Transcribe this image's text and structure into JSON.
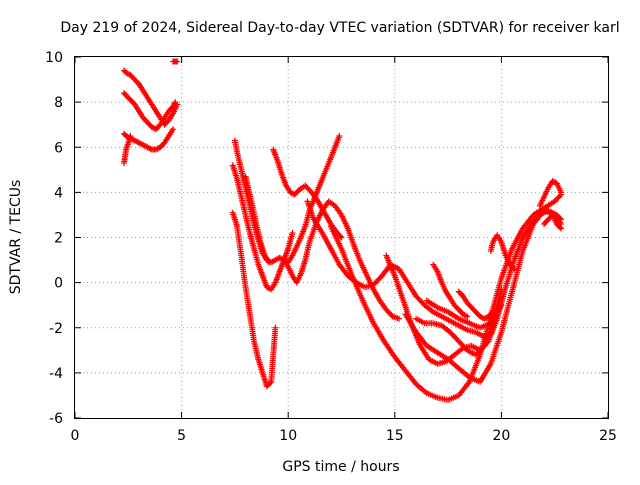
{
  "chart_data": {
    "type": "scatter",
    "title": "Day 219 of 2024, Sidereal Day-to-day VTEC variation (SDTVAR) for receiver karl",
    "xlabel": "GPS time / hours",
    "ylabel": "SDTVAR / TECUs",
    "xlim": [
      0,
      25
    ],
    "ylim": [
      -6,
      10
    ],
    "xticks": [
      "0",
      "5",
      "10",
      "15",
      "20",
      "25"
    ],
    "yticks": [
      "-6",
      "-4",
      "-2",
      "0",
      "2",
      "4",
      "6",
      "8",
      "10"
    ],
    "grid": true,
    "legend": "none",
    "marker": "plus",
    "color": "#ff0000",
    "series": [
      {
        "x": [
          2.3,
          2.4,
          2.6,
          2.8,
          3.0,
          3.2,
          3.4,
          3.6,
          3.8,
          4.0,
          4.2,
          4.4,
          4.6,
          4.8
        ],
        "y": [
          9.4,
          9.3,
          9.2,
          9.0,
          8.8,
          8.5,
          8.2,
          7.9,
          7.6,
          7.3,
          7.0,
          7.2,
          7.5,
          7.9
        ]
      },
      {
        "x": [
          2.3,
          2.4,
          2.6,
          2.8,
          3.0,
          3.2,
          3.4,
          3.6,
          3.8,
          4.0,
          4.2,
          4.4,
          4.6,
          4.7
        ],
        "y": [
          8.4,
          8.3,
          8.1,
          7.9,
          7.6,
          7.3,
          7.1,
          6.9,
          6.8,
          7.0,
          7.3,
          7.6,
          7.8,
          8.0
        ]
      },
      {
        "x": [
          2.3,
          2.4,
          2.6,
          2.8,
          3.0,
          3.2,
          3.4,
          3.6,
          3.8,
          4.0,
          4.2,
          4.4,
          4.6
        ],
        "y": [
          6.6,
          6.5,
          6.4,
          6.3,
          6.2,
          6.1,
          6.0,
          5.9,
          5.9,
          6.0,
          6.2,
          6.5,
          6.8
        ]
      },
      {
        "x": [
          2.3,
          2.35,
          2.4,
          2.5,
          2.6
        ],
        "y": [
          5.3,
          5.6,
          5.9,
          6.2,
          6.5
        ]
      },
      {
        "x": [
          4.6,
          4.7,
          4.8
        ],
        "y": [
          9.8,
          9.8,
          9.8
        ]
      },
      {
        "x": [
          7.5,
          7.6,
          7.8,
          8.0,
          8.2,
          8.4,
          8.6,
          8.8,
          9.0,
          9.2,
          9.4,
          9.6,
          9.8,
          10.0,
          10.2,
          10.5,
          10.8,
          11.0,
          11.3,
          11.6,
          11.9,
          12.2,
          12.4
        ],
        "y": [
          6.3,
          5.8,
          5.0,
          4.2,
          3.4,
          2.6,
          1.9,
          1.3,
          1.0,
          0.9,
          1.0,
          1.1,
          1.0,
          0.9,
          1.2,
          1.8,
          2.5,
          3.2,
          3.9,
          4.6,
          5.3,
          6.0,
          6.5
        ]
      },
      {
        "x": [
          7.4,
          7.6,
          7.8,
          8.0,
          8.2,
          8.4,
          8.6,
          8.8,
          9.0,
          9.2,
          9.4,
          9.6,
          9.8,
          10.0,
          10.2
        ],
        "y": [
          5.2,
          4.6,
          3.8,
          3.0,
          2.2,
          1.5,
          0.8,
          0.3,
          -0.2,
          -0.3,
          0.0,
          0.5,
          1.0,
          1.5,
          2.2
        ]
      },
      {
        "x": [
          7.4,
          7.6,
          7.8,
          8.0,
          8.2,
          8.4,
          8.6,
          8.8,
          9.0,
          9.2,
          9.4
        ],
        "y": [
          3.1,
          2.5,
          1.2,
          -0.2,
          -1.4,
          -2.6,
          -3.4,
          -4.0,
          -4.6,
          -4.4,
          -2.0
        ]
      },
      {
        "x": [
          8.0,
          8.1,
          8.3,
          8.5,
          8.7,
          8.9,
          9.1
        ],
        "y": [
          4.7,
          4.3,
          3.5,
          2.6,
          1.8,
          1.2,
          0.9
        ]
      },
      {
        "x": [
          9.3,
          9.5,
          9.7,
          9.9,
          10.1,
          10.3,
          10.5,
          10.8,
          11.1,
          11.4,
          11.7,
          12.0,
          12.3,
          12.5
        ],
        "y": [
          5.9,
          5.4,
          4.8,
          4.3,
          4.0,
          3.9,
          4.1,
          4.3,
          4.0,
          3.6,
          3.1,
          2.6,
          2.2,
          2.0
        ]
      },
      {
        "x": [
          9.8,
          10.0,
          10.2,
          10.4,
          10.6,
          10.8,
          11.0,
          11.3,
          11.6,
          11.9,
          12.2,
          12.5,
          12.8,
          13.1,
          13.4,
          13.7,
          14.0,
          14.3,
          14.6,
          14.9,
          15.2
        ],
        "y": [
          1.0,
          0.7,
          0.3,
          0.0,
          0.4,
          1.0,
          1.8,
          2.6,
          3.2,
          3.6,
          3.4,
          3.0,
          2.4,
          1.6,
          0.9,
          0.3,
          -0.3,
          -0.8,
          -1.2,
          -1.5,
          -1.6
        ]
      },
      {
        "x": [
          10.9,
          11.2,
          11.6,
          12.0,
          12.4,
          12.8,
          13.2,
          13.6,
          14.0,
          14.4,
          14.8,
          15.2,
          15.6,
          16.0,
          16.4,
          16.8,
          17.2,
          17.6,
          18.0,
          18.4,
          18.8,
          19.2
        ],
        "y": [
          3.6,
          2.8,
          2.2,
          1.5,
          0.8,
          0.3,
          0.0,
          -0.2,
          -0.1,
          0.3,
          0.8,
          0.6,
          0.0,
          -0.6,
          -1.0,
          -1.3,
          -1.5,
          -1.7,
          -1.9,
          -2.1,
          -2.2,
          -2.4
        ]
      },
      {
        "x": [
          12.0,
          12.5,
          13.0,
          13.5,
          14.0,
          14.5,
          15.0,
          15.5,
          16.0,
          16.5,
          17.0,
          17.5,
          18.0,
          18.5,
          19.0,
          19.5,
          20.0,
          20.5,
          21.0,
          21.5,
          22.0,
          22.5,
          22.8
        ],
        "y": [
          2.5,
          1.5,
          0.3,
          -0.8,
          -1.8,
          -2.6,
          -3.3,
          -3.9,
          -4.5,
          -4.9,
          -5.1,
          -5.2,
          -5.0,
          -4.4,
          -3.2,
          -1.5,
          0.2,
          1.5,
          2.4,
          3.0,
          3.3,
          3.6,
          3.9
        ]
      },
      {
        "x": [
          14.6,
          15.0,
          15.4,
          15.8,
          16.2,
          16.6,
          17.0,
          17.4,
          17.8,
          18.2,
          18.6,
          19.0,
          19.4,
          19.8,
          20.2,
          20.6,
          21.0,
          21.4,
          21.8,
          22.2,
          22.6,
          22.8
        ],
        "y": [
          1.2,
          0.3,
          -0.8,
          -1.9,
          -2.8,
          -3.4,
          -3.6,
          -3.5,
          -3.2,
          -2.9,
          -2.8,
          -3.0,
          -2.6,
          -1.6,
          -0.2,
          1.0,
          2.0,
          2.6,
          3.0,
          3.2,
          3.0,
          2.8
        ]
      },
      {
        "x": [
          15.5,
          16.0,
          16.5,
          17.0,
          17.5,
          18.0,
          18.5,
          19.0,
          19.5,
          20.0,
          20.5,
          21.0,
          21.5,
          22.0,
          22.5,
          22.8
        ],
        "y": [
          -1.4,
          -2.2,
          -2.8,
          -3.1,
          -3.4,
          -3.8,
          -4.2,
          -4.4,
          -3.6,
          -2.2,
          -0.4,
          1.4,
          2.6,
          3.2,
          3.0,
          2.6
        ]
      },
      {
        "x": [
          16.0,
          16.4,
          16.8,
          17.2,
          17.6,
          18.0,
          18.4,
          18.8,
          19.2,
          19.6,
          20.0
        ],
        "y": [
          -1.6,
          -1.8,
          -1.8,
          -1.9,
          -2.2,
          -2.6,
          -3.0,
          -3.2,
          -2.8,
          -1.8,
          -0.3
        ]
      },
      {
        "x": [
          16.5,
          17.0,
          17.5,
          18.0,
          18.5,
          19.0,
          19.5,
          20.0
        ],
        "y": [
          -0.8,
          -1.1,
          -1.3,
          -1.6,
          -1.8,
          -2.0,
          -1.8,
          -1.0
        ]
      },
      {
        "x": [
          16.8,
          17.0,
          17.2,
          17.4,
          17.6,
          17.8,
          18.0,
          18.2,
          18.4
        ],
        "y": [
          0.8,
          0.5,
          0.0,
          -0.4,
          -0.7,
          -1.0,
          -1.2,
          -1.4,
          -1.5
        ]
      },
      {
        "x": [
          18.0,
          18.2,
          18.4,
          18.6,
          18.8,
          19.0,
          19.2,
          19.4,
          19.6
        ],
        "y": [
          -0.4,
          -0.6,
          -0.9,
          -1.1,
          -1.3,
          -1.5,
          -1.6,
          -1.5,
          -1.3
        ]
      },
      {
        "x": [
          19.5,
          19.6,
          19.8,
          20.0,
          20.2,
          20.4,
          20.6
        ],
        "y": [
          1.4,
          1.8,
          2.1,
          1.8,
          1.2,
          0.8,
          0.6
        ]
      },
      {
        "x": [
          21.8,
          22.0,
          22.2,
          22.4,
          22.6,
          22.8
        ],
        "y": [
          3.4,
          3.8,
          4.2,
          4.5,
          4.4,
          4.0
        ]
      },
      {
        "x": [
          22.0,
          22.2,
          22.4,
          22.6,
          22.8
        ],
        "y": [
          2.6,
          2.8,
          3.0,
          2.6,
          2.4
        ]
      }
    ]
  }
}
